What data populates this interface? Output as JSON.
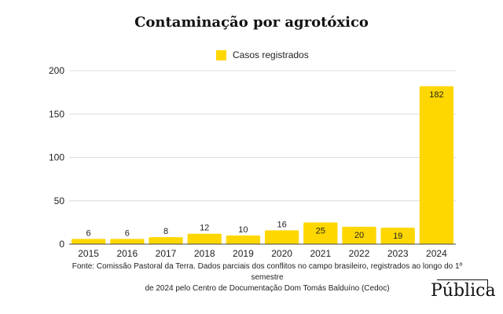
{
  "chart_data": {
    "type": "bar",
    "title": "Contaminação por agrotóxico",
    "legend": "Casos registrados",
    "categories": [
      "2015",
      "2016",
      "2017",
      "2018",
      "2019",
      "2020",
      "2021",
      "2022",
      "2023",
      "2024"
    ],
    "series": [
      {
        "name": "Casos registrados",
        "values": [
          6,
          6,
          8,
          12,
          10,
          16,
          25,
          20,
          19,
          182
        ]
      }
    ],
    "ylim": [
      0,
      200
    ],
    "yticks": [
      0,
      50,
      100,
      150,
      200
    ],
    "grid": true,
    "legend_position": "top-center",
    "bar_color": "#FFD700"
  },
  "footer": {
    "source_line1": "Fonte: Comissão Pastoral da Terra. Dados parciais dos conflitos no campo brasileiro, registrados ao longo do 1º semestre",
    "source_line2": "de 2024 pelo Centro de Documentação Dom Tomás Balduíno (Cedoc)",
    "brand": "Pública"
  }
}
